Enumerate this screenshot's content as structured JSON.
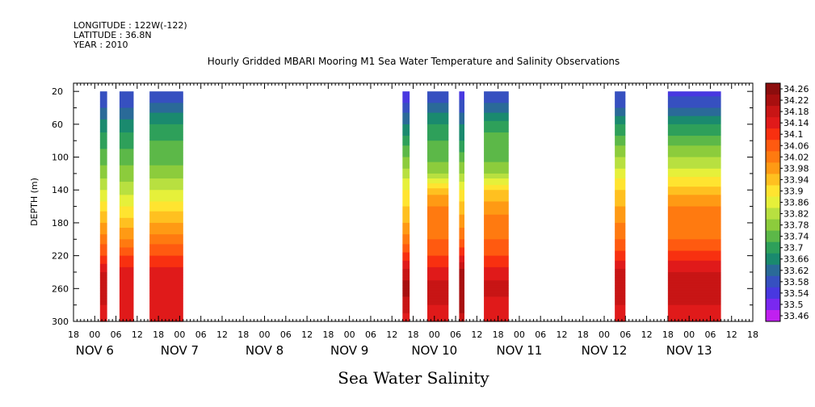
{
  "header": {
    "longitude": "LONGITUDE : 122W(-122)",
    "latitude": "LATITUDE : 36.8N",
    "year": "YEAR : 2010"
  },
  "chart_data": {
    "type": "heatmap",
    "title": "Hourly Gridded MBARI Mooring M1 Sea Water Temperature and Salinity Observations",
    "xlabel": "Sea Water Salinity",
    "ylabel": "DEPTH (m)",
    "x_unit": "hours since Nov 6 00:00, 2010",
    "xlim": [
      -6,
      186
    ],
    "ylim": [
      300,
      10
    ],
    "y_ticks": [
      20,
      60,
      100,
      140,
      180,
      220,
      260,
      300
    ],
    "x_hour_tick_labels": [
      "18",
      "00",
      "06",
      "12",
      "18",
      "00",
      "06",
      "12",
      "18",
      "00",
      "06",
      "12",
      "18",
      "00",
      "06",
      "12",
      "18",
      "00",
      "06",
      "12",
      "18",
      "00",
      "06",
      "12",
      "18",
      "00",
      "06",
      "12",
      "18",
      "00",
      "06",
      "12",
      "18"
    ],
    "day_labels": [
      {
        "text": "NOV  6",
        "hour": 0
      },
      {
        "text": "NOV  7",
        "hour": 24
      },
      {
        "text": "NOV  8",
        "hour": 48
      },
      {
        "text": "NOV  9",
        "hour": 72
      },
      {
        "text": "NOV 10",
        "hour": 96
      },
      {
        "text": "NOV 11",
        "hour": 120
      },
      {
        "text": "NOV 12",
        "hour": 144
      },
      {
        "text": "NOV 13",
        "hour": 168
      }
    ],
    "depths": [
      20,
      40,
      60,
      80,
      100,
      120,
      140,
      160,
      180,
      200,
      220,
      240,
      260,
      280,
      300
    ],
    "segments": [
      {
        "start": 1.5,
        "end": 3.5,
        "values": [
          33.58,
          33.62,
          33.68,
          33.72,
          33.76,
          33.8,
          33.86,
          33.92,
          33.98,
          34.04,
          34.1,
          34.18,
          34.2,
          34.18,
          34.17
        ]
      },
      {
        "start": 7,
        "end": 11,
        "values": [
          33.58,
          33.62,
          33.68,
          33.72,
          33.76,
          33.8,
          33.84,
          33.9,
          33.96,
          34.02,
          34.1,
          34.16,
          34.18,
          34.16,
          34.14
        ]
      },
      {
        "start": 15.5,
        "end": 25,
        "values": [
          33.58,
          33.64,
          33.7,
          33.74,
          33.76,
          33.8,
          33.86,
          33.92,
          33.98,
          34.04,
          34.1,
          34.16,
          34.18,
          34.16,
          34.14
        ]
      },
      {
        "start": 87,
        "end": 89,
        "values": [
          33.54,
          33.6,
          33.66,
          33.72,
          33.78,
          33.84,
          33.9,
          33.94,
          33.98,
          34.04,
          34.12,
          34.2,
          34.24,
          34.2,
          34.16
        ]
      },
      {
        "start": 94,
        "end": 100,
        "values": [
          33.58,
          33.64,
          33.7,
          33.74,
          33.76,
          33.82,
          33.96,
          34.02,
          34.04,
          34.06,
          34.1,
          34.16,
          34.2,
          34.18,
          34.14
        ]
      },
      {
        "start": 103,
        "end": 104.5,
        "values": [
          33.56,
          33.6,
          33.66,
          33.7,
          33.76,
          33.82,
          33.9,
          33.96,
          34.0,
          34.06,
          34.14,
          34.24,
          34.26,
          34.24,
          34.2
        ]
      },
      {
        "start": 110,
        "end": 117,
        "values": [
          33.58,
          33.64,
          33.72,
          33.76,
          33.76,
          33.82,
          33.94,
          34.0,
          34.04,
          34.06,
          34.1,
          34.16,
          34.2,
          34.16,
          34.14
        ]
      },
      {
        "start": 147,
        "end": 150,
        "values": [
          33.58,
          33.62,
          33.7,
          33.76,
          33.82,
          33.88,
          33.94,
          33.98,
          34.02,
          34.06,
          34.12,
          34.2,
          34.22,
          34.18,
          34.16
        ]
      },
      {
        "start": 162,
        "end": 177,
        "values": [
          33.56,
          33.62,
          33.7,
          33.76,
          33.82,
          33.88,
          33.96,
          34.02,
          34.04,
          34.06,
          34.12,
          34.18,
          34.2,
          34.18,
          34.16
        ]
      }
    ],
    "colorbar": {
      "levels": [
        "34.26",
        "34.22",
        "34.18",
        "34.14",
        "34.1",
        "34.06",
        "34.02",
        "33.98",
        "33.94",
        "33.9",
        "33.86",
        "33.82",
        "33.78",
        "33.74",
        "33.7",
        "33.66",
        "33.62",
        "33.58",
        "33.54",
        "33.5",
        "33.46"
      ],
      "colors": [
        "#8c0d0d",
        "#a80f0f",
        "#c81515",
        "#e01a1a",
        "#f83010",
        "#ff5a10",
        "#ff7a10",
        "#ff9a14",
        "#ffc020",
        "#ffe430",
        "#e6f03a",
        "#b8e040",
        "#8ccc3c",
        "#5cb848",
        "#2ea05a",
        "#1a8a6e",
        "#2a6a98",
        "#3650c0",
        "#4838e0",
        "#7a28f0",
        "#c020f0"
      ]
    }
  }
}
